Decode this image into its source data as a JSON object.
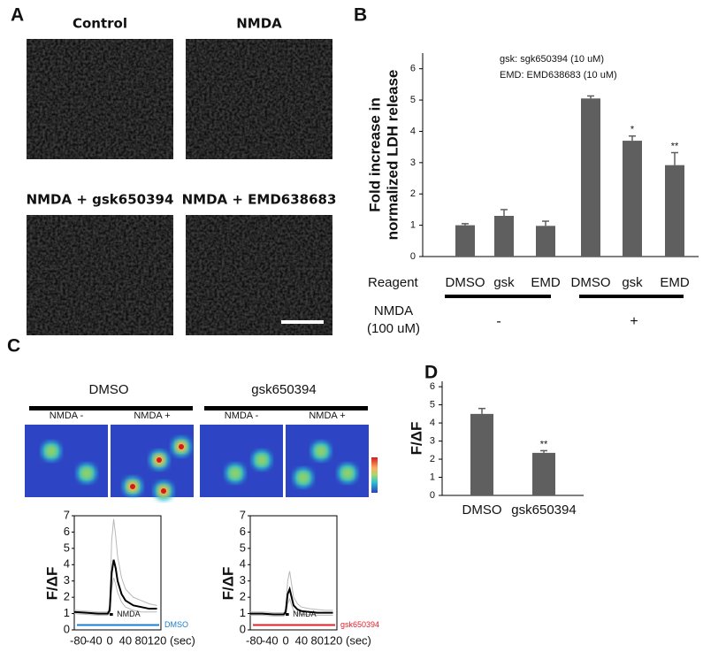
{
  "letters": [
    "A",
    "B",
    "C",
    "D"
  ],
  "images": [
    "Control",
    "NMDA",
    "NMDA + gsk650394",
    "NMDA + EMD638683"
  ],
  "chart_data": [
    {
      "type": "bar",
      "categories": [
        "DMSO",
        "gsk",
        "EMD",
        "DMSO",
        "gsk",
        "EMD"
      ],
      "values": [
        1.0,
        1.3,
        0.98,
        5.05,
        3.7,
        2.92
      ],
      "errors": [
        0.05,
        0.2,
        0.15,
        0.08,
        0.15,
        0.4
      ],
      "markers": [
        null,
        null,
        null,
        null,
        "*",
        "**"
      ],
      "color": "#5f5f5f",
      "ylim": [
        0,
        6.5
      ],
      "yticks": [
        0,
        1,
        2,
        3,
        4,
        5,
        6
      ],
      "ylabel": [
        "Fold increase in",
        "normalized LDH release"
      ],
      "notes": [
        "gsk:   sgk650394 (10 uM)",
        "EMD: EMD638683 (10 uM)"
      ],
      "row_label": "Reagent",
      "group_label": [
        "NMDA",
        "(100 uM)"
      ],
      "groups": [
        "-",
        "+"
      ]
    },
    {
      "type": "bar",
      "categories": [
        "DMSO",
        "gsk650394"
      ],
      "values": [
        4.5,
        2.35
      ],
      "errors": [
        0.3,
        0.12
      ],
      "markers": [
        null,
        "**"
      ],
      "color": "#5f5f5f",
      "ylim": [
        0,
        6.3
      ],
      "yticks": [
        0,
        1,
        2,
        3,
        4,
        5,
        6
      ],
      "ylabel": [
        "F/ΔF"
      ]
    },
    {
      "type": "line",
      "title": "DMSO",
      "images": [
        "NMDA -",
        "NMDA +"
      ],
      "x": [
        -90,
        -60,
        -30,
        -5,
        0,
        5,
        10,
        15,
        20,
        30,
        40,
        60,
        80,
        100,
        120
      ],
      "series": [
        {
          "color": "#b8b8b8",
          "values": [
            1.2,
            1.15,
            1.1,
            1.1,
            1.5,
            5.5,
            6.8,
            5.8,
            4.5,
            3.2,
            2.5,
            2.0,
            1.8,
            1.6,
            1.5
          ]
        },
        {
          "color": "#b8b8b8",
          "values": [
            1.0,
            0.95,
            0.9,
            0.9,
            1.0,
            2.5,
            3.2,
            2.8,
            2.3,
            1.7,
            1.4,
            1.2,
            1.1,
            1.1,
            1.1
          ]
        },
        {
          "color": "#000000",
          "values": [
            1.1,
            1.05,
            1.0,
            1.0,
            1.2,
            3.5,
            4.3,
            3.8,
            3.0,
            2.2,
            1.8,
            1.5,
            1.4,
            1.3,
            1.3
          ]
        }
      ],
      "xlim": [
        -90,
        130
      ],
      "xticks": [
        -80,
        -40,
        0,
        40,
        80,
        120
      ],
      "xlabel": "(sec)",
      "ylim": [
        0,
        7
      ],
      "yticks": [
        0,
        1,
        2,
        3,
        4,
        5,
        6,
        7
      ],
      "ylabel": "F/ΔF",
      "stimulus": "NMDA",
      "condition": "DMSO",
      "condition_color": "#1a7fd0"
    },
    {
      "type": "line",
      "title": "gsk650394",
      "images": [
        "NMDA -",
        "NMDA +"
      ],
      "x": [
        -90,
        -60,
        -30,
        -5,
        0,
        5,
        10,
        15,
        20,
        30,
        40,
        60,
        80,
        100,
        120
      ],
      "series": [
        {
          "color": "#b8b8b8",
          "values": [
            1.1,
            1.1,
            1.05,
            1.05,
            1.3,
            3.0,
            3.6,
            2.8,
            2.0,
            1.6,
            1.4,
            1.3,
            1.25,
            1.2,
            1.2
          ]
        },
        {
          "color": "#b8b8b8",
          "values": [
            0.9,
            0.9,
            0.85,
            0.85,
            1.0,
            1.6,
            1.9,
            1.5,
            1.2,
            1.0,
            0.95,
            0.95,
            0.9,
            0.9,
            0.9
          ]
        },
        {
          "color": "#000000",
          "values": [
            1.0,
            1.0,
            0.95,
            0.95,
            1.1,
            2.2,
            2.5,
            2.0,
            1.5,
            1.25,
            1.15,
            1.1,
            1.05,
            1.05,
            1.05
          ]
        }
      ],
      "xlim": [
        -90,
        130
      ],
      "xticks": [
        -80,
        -40,
        0,
        40,
        80,
        120
      ],
      "xlabel": "(sec)",
      "ylim": [
        0,
        7
      ],
      "yticks": [
        0,
        1,
        2,
        3,
        4,
        5,
        6,
        7
      ],
      "ylabel": "F/ΔF",
      "stimulus": "NMDA",
      "condition": "gsk650394",
      "condition_color": "#e0202a"
    }
  ]
}
